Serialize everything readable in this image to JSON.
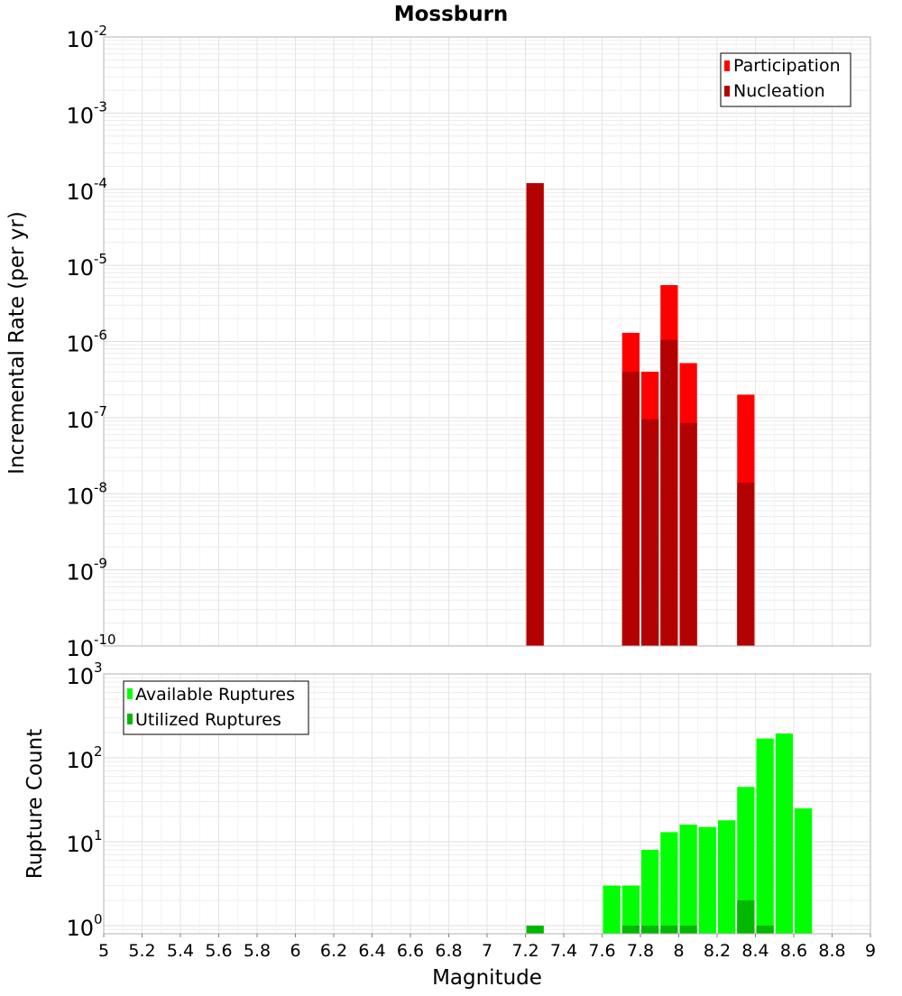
{
  "title": "Mossburn",
  "chart_data": [
    {
      "type": "bar",
      "title": "Mossburn",
      "xlabel": "Magnitude",
      "ylabel": "Incremental Rate (per yr)",
      "yscale": "log",
      "xlim": [
        5,
        9
      ],
      "ylim": [
        1e-10,
        0.01
      ],
      "grid": true,
      "legend_position": "top-right",
      "bar_width": 0.1,
      "y_ticks": [
        {
          "base": "10",
          "exp": "-10"
        },
        {
          "base": "10",
          "exp": "-9"
        },
        {
          "base": "10",
          "exp": "-8"
        },
        {
          "base": "10",
          "exp": "-7"
        },
        {
          "base": "10",
          "exp": "-6"
        },
        {
          "base": "10",
          "exp": "-5"
        },
        {
          "base": "10",
          "exp": "-4"
        },
        {
          "base": "10",
          "exp": "-3"
        },
        {
          "base": "10",
          "exp": "-2"
        }
      ],
      "series": [
        {
          "name": "Participation",
          "color": "#ff0000",
          "x": [
            7.25,
            7.75,
            7.85,
            7.95,
            8.05,
            8.35
          ],
          "values": [
            0.00012,
            1.3e-06,
            4e-07,
            5.5e-06,
            5.2e-07,
            2e-07
          ]
        },
        {
          "name": "Nucleation",
          "color": "#b30000",
          "x": [
            7.25,
            7.75,
            7.85,
            7.95,
            8.05,
            8.35
          ],
          "values": [
            0.00012,
            4e-07,
            9.5e-08,
            1.05e-06,
            8.5e-08,
            1.4e-08
          ]
        }
      ]
    },
    {
      "type": "bar",
      "xlabel": "Magnitude",
      "ylabel": "Rupture Count",
      "yscale": "log",
      "xlim": [
        5,
        9
      ],
      "ylim": [
        0.8,
        1000
      ],
      "grid": true,
      "legend_position": "top-left",
      "bar_width": 0.1,
      "x_ticks": [
        "5",
        "5.2",
        "5.4",
        "5.6",
        "5.8",
        "6",
        "6.2",
        "6.4",
        "6.6",
        "6.8",
        "7",
        "7.2",
        "7.4",
        "7.6",
        "7.8",
        "8",
        "8.2",
        "8.4",
        "8.6",
        "8.8",
        "9"
      ],
      "y_ticks": [
        {
          "base": "10",
          "exp": "0"
        },
        {
          "base": "10",
          "exp": "1"
        },
        {
          "base": "10",
          "exp": "2"
        },
        {
          "base": "10",
          "exp": "3"
        }
      ],
      "series": [
        {
          "name": "Available Ruptures",
          "color": "#00ff00",
          "x": [
            7.25,
            7.65,
            7.75,
            7.85,
            7.95,
            8.05,
            8.15,
            8.25,
            8.35,
            8.45,
            8.55,
            8.65
          ],
          "values": [
            1,
            3,
            3,
            8,
            13,
            16,
            15,
            18,
            45,
            170,
            195,
            25
          ]
        },
        {
          "name": "Utilized Ruptures",
          "color": "#00b800",
          "x": [
            7.25,
            7.75,
            7.85,
            7.95,
            8.05,
            8.35,
            8.45
          ],
          "values": [
            1,
            1,
            1,
            1,
            1,
            2,
            1
          ]
        }
      ]
    }
  ]
}
